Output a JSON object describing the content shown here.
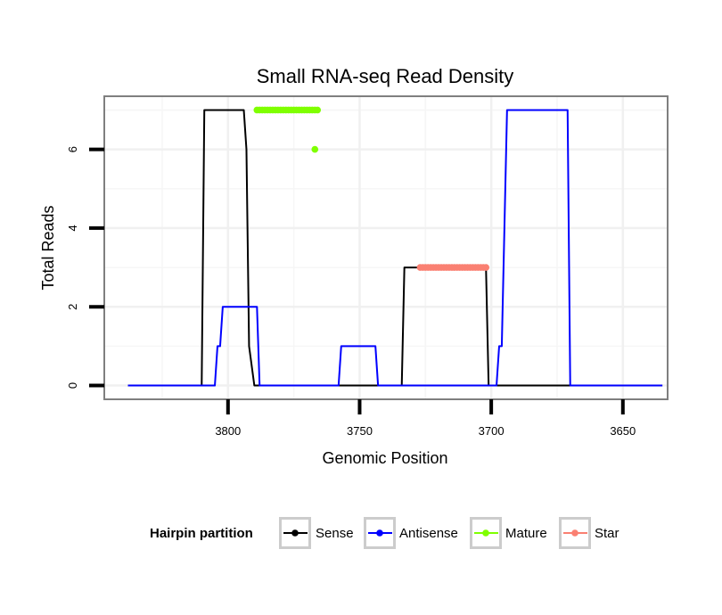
{
  "chart_data": {
    "type": "line",
    "title": "Small RNA-seq Read Density",
    "xlabel": "Genomic Position",
    "ylabel": "Total Reads",
    "x_reversed": true,
    "xlim": [
      3633,
      3847
    ],
    "ylim": [
      -0.35,
      7.35
    ],
    "x_ticks": [
      3800,
      3750,
      3700,
      3650
    ],
    "x_tick_labels": [
      "3800",
      "3750",
      "3700",
      "3650"
    ],
    "y_ticks": [
      0,
      2,
      4,
      6
    ],
    "y_tick_labels": [
      "0",
      "2",
      "4",
      "6"
    ],
    "grid": true,
    "legend": {
      "title": "Hairpin partition",
      "position": "bottom",
      "items": [
        {
          "label": "Sense",
          "color": "#000000"
        },
        {
          "label": "Antisense",
          "color": "#0000ff"
        },
        {
          "label": "Mature",
          "color": "#7fff00"
        },
        {
          "label": "Star",
          "color": "#fa8072"
        }
      ]
    },
    "series": [
      {
        "name": "Sense",
        "color": "#000000",
        "x": [
          3838,
          3810,
          3809,
          3797,
          3794,
          3793,
          3792,
          3790,
          3734,
          3733,
          3702,
          3701,
          3696,
          3635
        ],
        "y": [
          0,
          0,
          7,
          7,
          7,
          6,
          1,
          0,
          0,
          3,
          3,
          0,
          0,
          0
        ]
      },
      {
        "name": "Antisense",
        "color": "#0000ff",
        "x": [
          3838,
          3805,
          3804,
          3803,
          3802,
          3789,
          3788,
          3758,
          3757,
          3744,
          3743,
          3703,
          3698,
          3697,
          3696,
          3694,
          3671,
          3670,
          3635
        ],
        "y": [
          0,
          0,
          1,
          1,
          2,
          2,
          0,
          0,
          1,
          1,
          0,
          0,
          0,
          1,
          1,
          7,
          7,
          0,
          0
        ]
      },
      {
        "name": "Mature",
        "color": "#7fff00",
        "x": [
          3789,
          3788,
          3787,
          3786,
          3785,
          3784,
          3783,
          3782,
          3781,
          3780,
          3779,
          3778,
          3777,
          3776,
          3775,
          3774,
          3773,
          3772,
          3771,
          3770,
          3769,
          3768,
          3767,
          3766,
          3767
        ],
        "y": [
          7,
          7,
          7,
          7,
          7,
          7,
          7,
          7,
          7,
          7,
          7,
          7,
          7,
          7,
          7,
          7,
          7,
          7,
          7,
          7,
          7,
          7,
          7,
          7,
          6
        ]
      },
      {
        "name": "Star",
        "color": "#fa8072",
        "x": [
          3727,
          3726,
          3725,
          3724,
          3723,
          3722,
          3721,
          3720,
          3719,
          3718,
          3717,
          3716,
          3715,
          3714,
          3713,
          3712,
          3711,
          3710,
          3709,
          3708,
          3707,
          3706,
          3705,
          3704,
          3703,
          3702
        ],
        "y": [
          3,
          3,
          3,
          3,
          3,
          3,
          3,
          3,
          3,
          3,
          3,
          3,
          3,
          3,
          3,
          3,
          3,
          3,
          3,
          3,
          3,
          3,
          3,
          3,
          3,
          3
        ]
      }
    ]
  }
}
